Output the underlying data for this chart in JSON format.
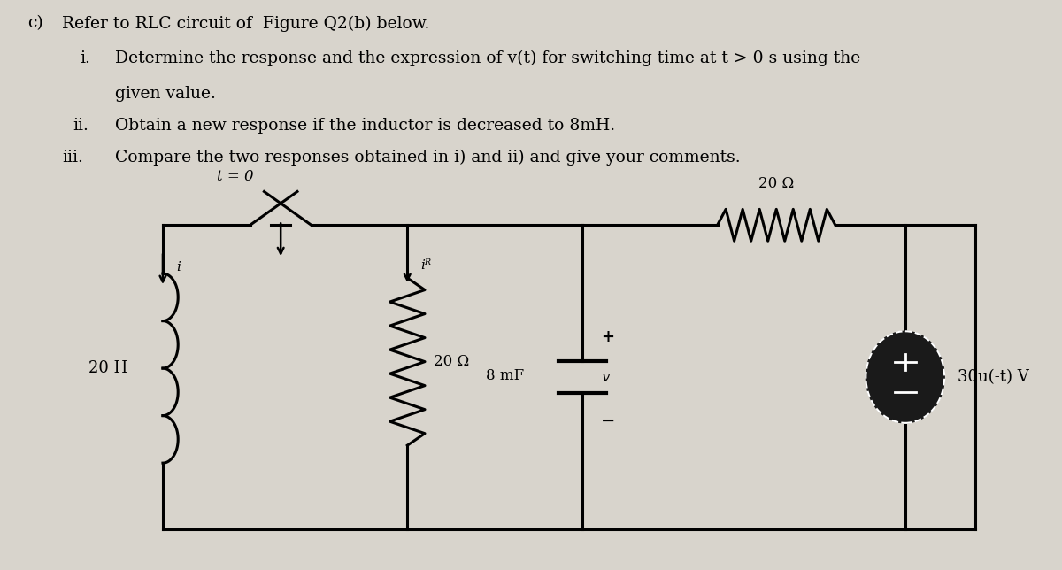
{
  "bg_color": "#d8d4cc",
  "title_c": "c)",
  "title_text": "Refer to RLC circuit of  Figure Q2(b) below.",
  "item_i_label": "i.",
  "item_i_text": "Determine the response and the expression of v(t) for switching time at t > 0 s using the",
  "item_i_text2": "given value.",
  "item_ii_label": "ii.",
  "item_ii_text": "Obtain a new response if the inductor is decreased to 8mH.",
  "item_iii_label": "iii.",
  "item_iii_text": "Compare the two responses obtained in i) and ii) and give your comments.",
  "font_size_text": 13.5,
  "label_20H": "20 H",
  "label_20ohm_left": "20 Ω",
  "label_20ohm_top": "20 Ω",
  "label_8mF": "8 mF",
  "label_voltage_source": "30u(-t) V",
  "label_t0": "t = 0",
  "label_iR": "iᴿ",
  "label_i": "i",
  "label_v": "v",
  "label_plus": "+",
  "label_minus": "−"
}
